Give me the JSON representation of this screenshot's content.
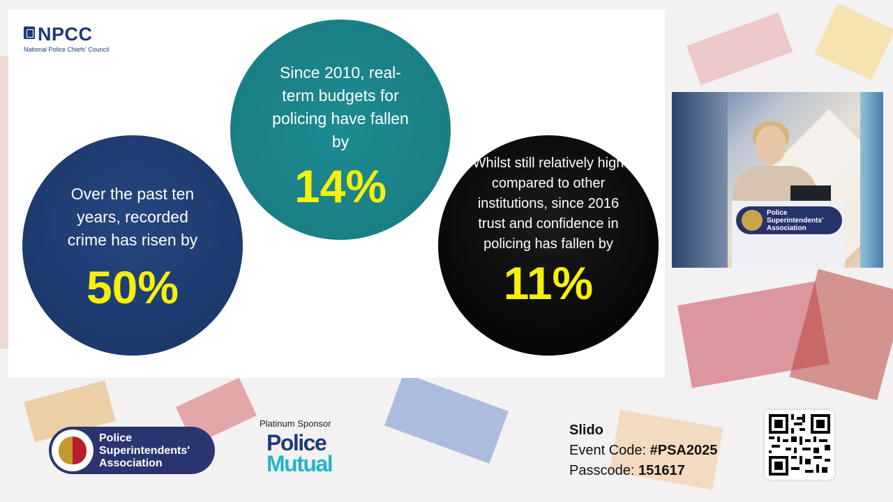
{
  "slide": {
    "npcc_title": "NPCC",
    "npcc_subtitle": "National Police Chiefs' Council",
    "stats": [
      {
        "text": "Over the past ten years, recorded crime has risen by",
        "value": "50%"
      },
      {
        "text": "Since 2010, real-term budgets for policing have fallen by",
        "value": "14%"
      },
      {
        "text": "Whilst still relatively high compared to other institutions, since 2016 trust and confidence in policing has fallen by",
        "value": "11%"
      }
    ]
  },
  "speaker_feed": {
    "podium_badge_line1": "Police",
    "podium_badge_line2": "Superintendents'",
    "podium_badge_line3": "Association"
  },
  "footer": {
    "psa_line1": "Police",
    "psa_line2": "Superintendents'",
    "psa_line3": "Association",
    "sponsor_label": "Platinum Sponsor",
    "sponsor_line1": "Police",
    "sponsor_line2": "Mutual",
    "slido_title": "Slido",
    "event_code_label": "Event Code: ",
    "event_code_value": "#PSA2025",
    "passcode_label": "Passcode: ",
    "passcode_value": "151617"
  },
  "colors": {
    "accent_yellow": "#f6f10a",
    "navy": "#1a3566",
    "teal": "#1a7a82",
    "black": "#000000",
    "psa_navy": "#2a3570",
    "pm_cyan": "#21b5c9"
  }
}
